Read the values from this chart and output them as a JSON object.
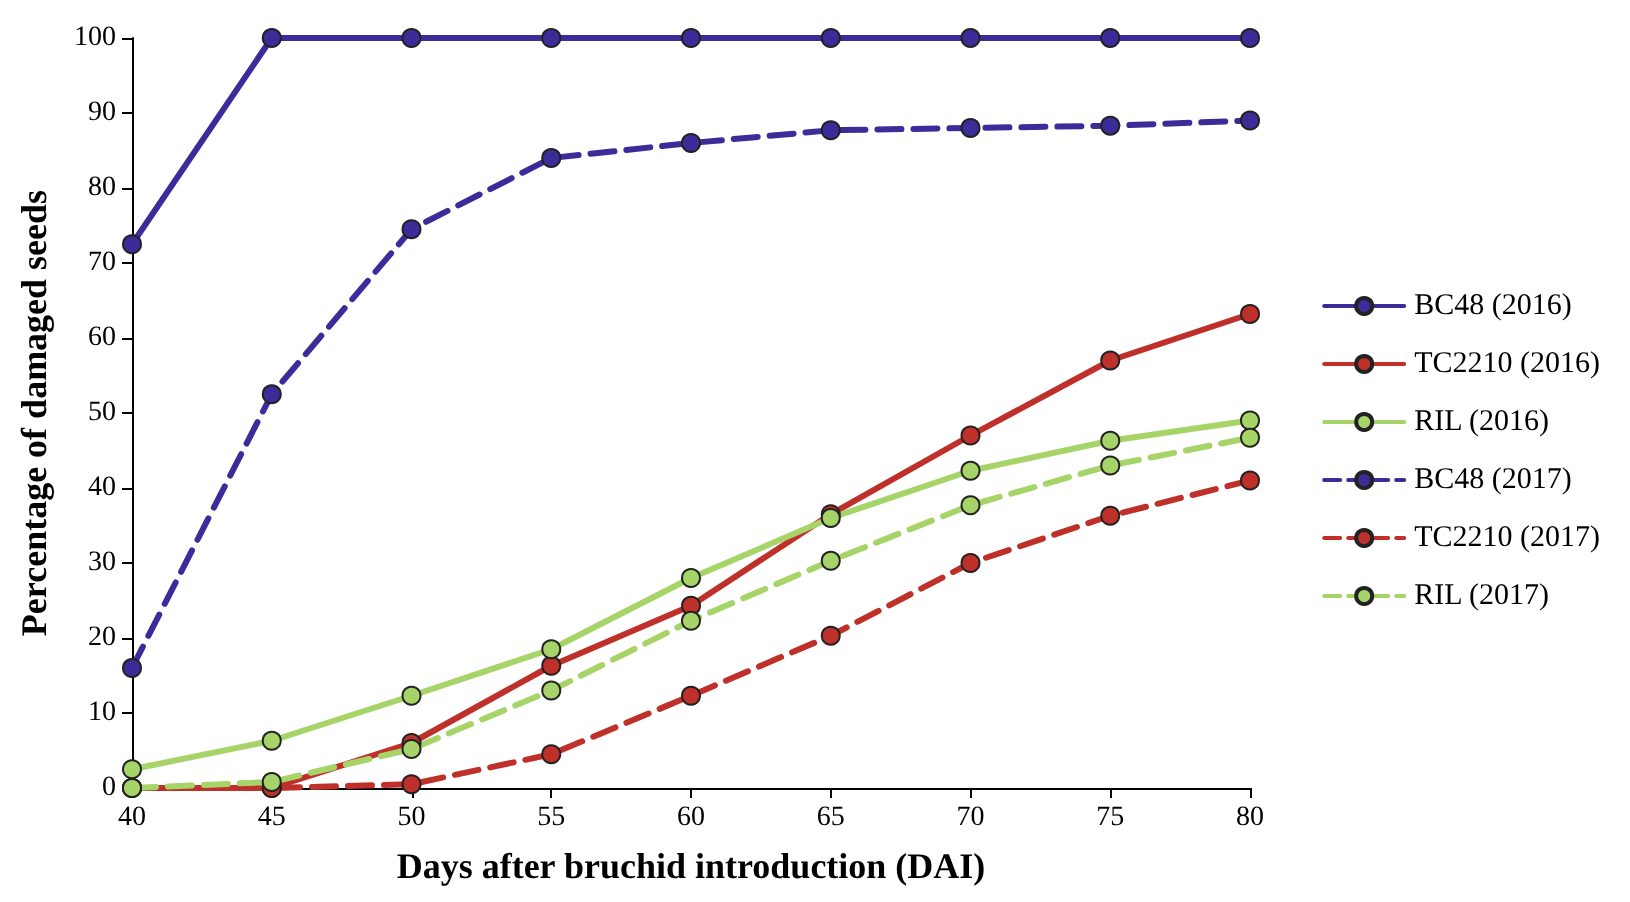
{
  "chart_data": {
    "type": "line",
    "xlabel": "Days after bruchid introduction (DAI)",
    "ylabel": "Percentage of damaged seeds",
    "x": [
      40,
      45,
      50,
      55,
      60,
      65,
      70,
      75,
      80
    ],
    "xlim": [
      40,
      80
    ],
    "xticks": [
      40,
      45,
      50,
      55,
      60,
      65,
      70,
      75,
      80
    ],
    "ylim": [
      0,
      100
    ],
    "yticks": [
      0,
      10,
      20,
      30,
      40,
      50,
      60,
      70,
      80,
      90,
      100
    ],
    "grid": false,
    "legend": "right",
    "marker": "circle",
    "series": [
      {
        "name": "BC48 (2016)",
        "color": "#3b2c9a",
        "line_style": "solid",
        "values": [
          72.5,
          100,
          100,
          100,
          100,
          100,
          100,
          100,
          100
        ]
      },
      {
        "name": "TC2210 (2016)",
        "color": "#c0302a",
        "line_style": "solid",
        "values": [
          0,
          0,
          6,
          16.3,
          24.3,
          36.5,
          47,
          57,
          63.2
        ]
      },
      {
        "name": "RIL (2016)",
        "color": "#a6d468",
        "line_style": "solid",
        "values": [
          2.5,
          6.3,
          12.3,
          18.5,
          28,
          36,
          42.3,
          46.3,
          49
        ]
      },
      {
        "name": "BC48 (2017)",
        "color": "#3b2c9a",
        "line_style": "dashed",
        "values": [
          16,
          52.5,
          74.5,
          84,
          86,
          87.7,
          88,
          88.3,
          89
        ]
      },
      {
        "name": "TC2210 (2017)",
        "color": "#c0302a",
        "line_style": "dashed",
        "values": [
          0,
          0,
          0.5,
          4.5,
          12.3,
          20.3,
          30,
          36.3,
          41
        ]
      },
      {
        "name": "RIL (2017)",
        "color": "#a6d468",
        "line_style": "dashed",
        "values": [
          0,
          0.8,
          5.2,
          13,
          22.3,
          30.3,
          37.7,
          43,
          46.7
        ]
      }
    ]
  }
}
